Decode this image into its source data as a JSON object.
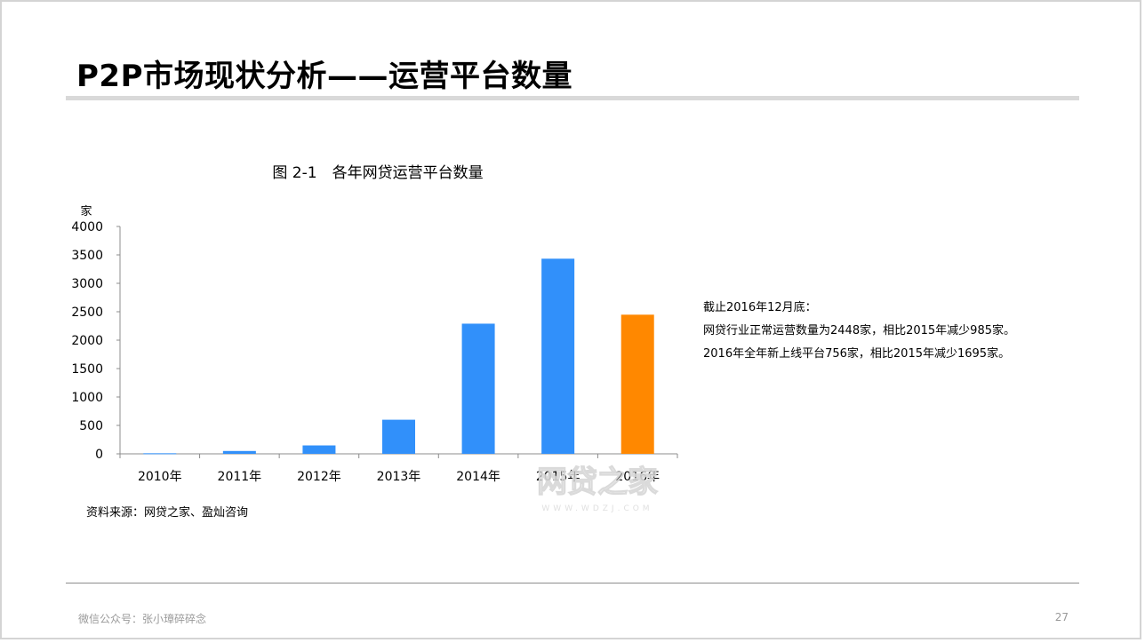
{
  "slide": {
    "title": "P2P市场现状分析——运营平台数量",
    "source": "资料来源：网贷之家、盈灿咨询",
    "notes": [
      "截止2016年12月底：",
      "网贷行业正常运营数量为2448家，相比2015年减少985家。",
      "2016年全年新上线平台756家，相比2015年减少1695家。"
    ],
    "footer": "微信公众号：张小璋碎碎念",
    "page_number": "27",
    "watermark": {
      "text": "网贷之家",
      "subtext": "WWW.WDZJ.COM"
    }
  },
  "colors": {
    "bar_default": "#3190FA",
    "bar_highlight": "#FF8800",
    "axis": "#8c8c8c",
    "title_rule": "#d9d9d9"
  },
  "chart_data": {
    "type": "bar",
    "title": "图 2-1　各年网贷运营平台数量",
    "ylabel": "家",
    "xlabel": "",
    "categories": [
      "2010年",
      "2011年",
      "2012年",
      "2013年",
      "2014年",
      "2015年",
      "2016年"
    ],
    "values": [
      10,
      50,
      148,
      600,
      2290,
      3433,
      2448
    ],
    "highlight_index": 6,
    "ylim": [
      0,
      4000
    ],
    "yticks": [
      0,
      500,
      1000,
      1500,
      2000,
      2500,
      3000,
      3500,
      4000
    ],
    "grid": false,
    "legend": "none"
  }
}
